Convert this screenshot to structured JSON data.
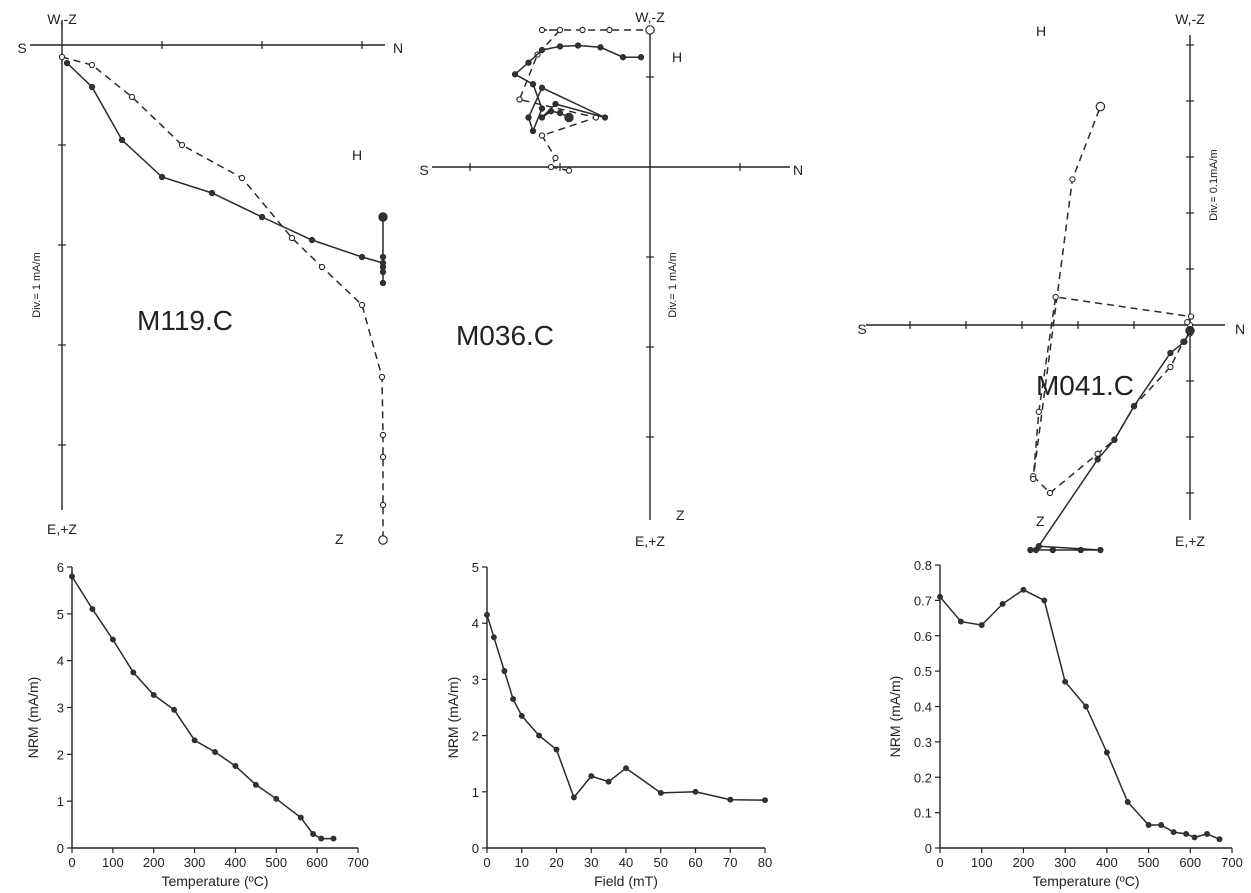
{
  "chart_data": [
    {
      "type": "scatter",
      "subtype": "zijderveld",
      "specimen": "M119.C",
      "labels": {
        "top": "W,-Z",
        "bottom": "E,+Z",
        "left": "S",
        "right": "N",
        "scale": "Div.= 1 mA/m",
        "horizontal": "H",
        "vertical": "Z"
      },
      "horizontal_projection": [
        [
          0.05,
          0.18
        ],
        [
          0.3,
          0.42
        ],
        [
          0.6,
          0.95
        ],
        [
          1.0,
          1.32
        ],
        [
          1.5,
          1.48
        ],
        [
          2.0,
          1.72
        ],
        [
          2.5,
          1.95
        ],
        [
          3.0,
          2.12
        ],
        [
          3.5,
          2.18
        ],
        [
          3.8,
          2.22
        ],
        [
          4.3,
          2.27
        ],
        [
          4.9,
          2.38
        ],
        [
          5.2,
          2.12
        ],
        [
          5.5,
          1.72
        ]
      ],
      "vertical_projection": [
        [
          0.0,
          0.12
        ],
        [
          0.3,
          0.2
        ],
        [
          0.7,
          0.52
        ],
        [
          1.2,
          1.0
        ],
        [
          1.8,
          1.33
        ],
        [
          2.3,
          1.93
        ],
        [
          2.6,
          2.22
        ],
        [
          3.0,
          2.6
        ],
        [
          3.2,
          3.32
        ],
        [
          3.5,
          3.9
        ],
        [
          3.7,
          4.12
        ],
        [
          4.1,
          4.6
        ],
        [
          4.9,
          5.42
        ],
        [
          5.3,
          6.1
        ],
        [
          5.5,
          6.65
        ]
      ]
    },
    {
      "type": "scatter",
      "subtype": "zijderveld",
      "specimen": "M036.C",
      "labels": {
        "top": "W,-Z",
        "bottom": "E,+Z",
        "left": "S",
        "right": "N",
        "scale": "Div.= 1 mA/m",
        "horizontal": "H",
        "vertical": "Z"
      },
      "horizontal_projection": [
        [
          -0.1,
          -1.22
        ],
        [
          -0.3,
          -1.22
        ],
        [
          -0.55,
          -1.33
        ],
        [
          -0.8,
          -1.35
        ],
        [
          -1.0,
          -1.34
        ],
        [
          -1.2,
          -1.3
        ],
        [
          -1.35,
          -1.16
        ],
        [
          -1.5,
          -1.03
        ],
        [
          -1.3,
          -0.92
        ],
        [
          -1.2,
          -0.65
        ],
        [
          -1.3,
          -0.4
        ],
        [
          -1.35,
          -0.55
        ],
        [
          -1.2,
          -0.88
        ],
        [
          -0.5,
          -0.55
        ],
        [
          -1.05,
          -0.7
        ],
        [
          -1.2,
          -0.55
        ],
        [
          -1.1,
          -0.62
        ],
        [
          -1.0,
          -0.6
        ],
        [
          -0.9,
          -0.55
        ]
      ],
      "vertical_projection": [
        [
          -0.9,
          0.04
        ],
        [
          -1.1,
          0.0
        ],
        [
          -1.05,
          -0.1
        ],
        [
          -1.2,
          -0.35
        ],
        [
          -0.6,
          -0.55
        ],
        [
          -1.45,
          -0.75
        ],
        [
          -1.25,
          -1.25
        ],
        [
          -1.0,
          -1.8
        ],
        [
          -1.2,
          -2.0
        ],
        [
          -0.75,
          -2.65
        ],
        [
          -0.45,
          -3.45
        ],
        [
          0.0,
          -3.95
        ]
      ]
    },
    {
      "type": "scatter",
      "subtype": "zijderveld",
      "specimen": "M041.C",
      "labels": {
        "top": "W,-Z",
        "bottom": "E,+Z",
        "left": "S",
        "right": "N",
        "scale": "Div.= 0.1mA/m",
        "horizontal": "H",
        "vertical": "Z"
      },
      "horizontal_projection": [
        [
          -0.285,
          0.47
        ],
        [
          -0.275,
          0.455
        ],
        [
          -0.245,
          0.445
        ],
        [
          -0.195,
          0.445
        ],
        [
          -0.16,
          0.52
        ],
        [
          -0.27,
          0.395
        ],
        [
          -0.165,
          0.24
        ],
        [
          -0.135,
          0.205
        ],
        [
          -0.1,
          0.145
        ],
        [
          -0.035,
          0.05
        ],
        [
          -0.01,
          0.03
        ],
        [
          0.0,
          0.01
        ]
      ],
      "vertical_projection": [
        [
          -0.28,
          0.27
        ],
        [
          -0.25,
          0.3
        ],
        [
          -0.165,
          0.23
        ],
        [
          -0.135,
          0.205
        ],
        [
          -0.1,
          0.145
        ],
        [
          -0.035,
          0.075
        ],
        [
          -0.012,
          0.03
        ],
        [
          0.0,
          0.015
        ],
        [
          0.0,
          0.0
        ],
        [
          -0.005,
          -0.005
        ],
        [
          0.002,
          -0.015
        ],
        [
          -0.24,
          -0.05
        ],
        [
          -0.27,
          0.155
        ],
        [
          -0.28,
          0.275
        ],
        [
          -0.21,
          -0.26
        ],
        [
          -0.16,
          -0.39
        ]
      ]
    },
    {
      "type": "line",
      "xlabel": "Temperature (ºC)",
      "ylabel": "NRM (mA/m)",
      "xlim": [
        0,
        700
      ],
      "ylim": [
        0,
        6
      ],
      "xticks": [
        0,
        100,
        200,
        300,
        400,
        500,
        600,
        700
      ],
      "yticks": [
        0,
        1,
        2,
        3,
        4,
        5,
        6
      ],
      "x": [
        0,
        50,
        100,
        150,
        200,
        250,
        300,
        350,
        400,
        450,
        500,
        560,
        590,
        610,
        640
      ],
      "y": [
        5.8,
        5.1,
        4.45,
        3.75,
        3.27,
        2.95,
        2.3,
        2.05,
        1.75,
        1.35,
        1.05,
        0.65,
        0.3,
        0.2,
        0.2
      ]
    },
    {
      "type": "line",
      "xlabel": "Field (mT)",
      "ylabel": "NRM (mA/m)",
      "xlim": [
        0,
        80
      ],
      "ylim": [
        0,
        5
      ],
      "xticks": [
        0,
        10,
        20,
        30,
        40,
        50,
        60,
        70,
        80
      ],
      "yticks": [
        0,
        1,
        2,
        3,
        4,
        5
      ],
      "x": [
        0,
        2,
        5,
        7.5,
        10,
        15,
        20,
        25,
        30,
        35,
        40,
        50,
        60,
        70,
        80
      ],
      "y": [
        4.15,
        3.75,
        3.15,
        2.65,
        2.35,
        2.0,
        1.75,
        0.9,
        1.28,
        1.18,
        1.42,
        0.98,
        1.0,
        0.86,
        0.85
      ]
    },
    {
      "type": "line",
      "xlabel": "Temperature (ºC)",
      "ylabel": "NRM (mA/m)",
      "xlim": [
        0,
        700
      ],
      "ylim": [
        0,
        0.8
      ],
      "xticks": [
        0,
        100,
        200,
        300,
        400,
        500,
        600,
        700
      ],
      "yticks": [
        0,
        0.1,
        0.2,
        0.3,
        0.4,
        0.5,
        0.6,
        0.7,
        0.8
      ],
      "x": [
        0,
        50,
        100,
        150,
        200,
        250,
        300,
        350,
        400,
        450,
        500,
        530,
        560,
        590,
        610,
        640,
        670
      ],
      "y": [
        0.71,
        0.64,
        0.63,
        0.69,
        0.73,
        0.7,
        0.47,
        0.4,
        0.27,
        0.13,
        0.065,
        0.065,
        0.045,
        0.04,
        0.03,
        0.04,
        0.025
      ]
    }
  ]
}
